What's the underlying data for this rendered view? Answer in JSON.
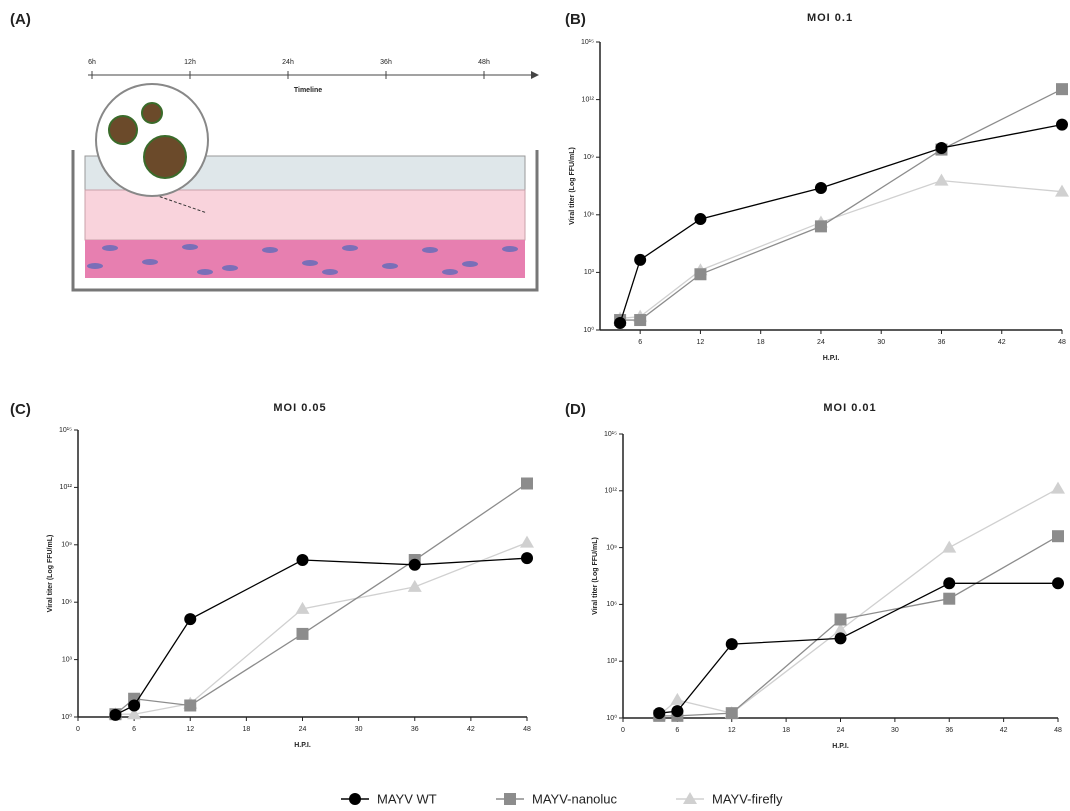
{
  "diagram": {
    "label": "(A)",
    "timeline_labels": [
      "6h",
      "12h",
      "24h",
      "36h",
      "48h"
    ],
    "timeline_title": "Timeline"
  },
  "chart_data": [
    {
      "type": "line",
      "panel": "(B)",
      "title": "MOI 0.1",
      "x_label": "H.P.I.",
      "y_label": "Viral titer (Log FFU/mL)",
      "log_y": true,
      "x": [
        4,
        6,
        12,
        24,
        36,
        48
      ],
      "xlim": [
        2,
        48
      ],
      "xticks": [
        6,
        12,
        18,
        24,
        30,
        36,
        42,
        48
      ],
      "ylim": [
        1,
        1000000000000000.0
      ],
      "yticks": [
        {
          "value": 1,
          "label": "10⁰"
        },
        {
          "value": 1000.0,
          "label": "10³"
        },
        {
          "value": 1000000.0,
          "label": "10⁶"
        },
        {
          "value": 1000000000.0,
          "label": "10⁹"
        },
        {
          "value": 1000000000000.0,
          "label": "10¹²"
        },
        {
          "value": 1000000000000000.0,
          "label": "10¹⁵"
        }
      ],
      "series": [
        {
          "name": "MAYV WT",
          "color": "#000000",
          "marker": "circle",
          "values": [
            2.3,
            4500,
            600000,
            25000000,
            3000000000,
            50000000000
          ]
        },
        {
          "name": "MAYV-nanoluc",
          "color": "#8c8c8c",
          "marker": "square",
          "values": [
            3.3,
            3.3,
            800,
            250000,
            2500000000,
            3500000000000
          ]
        },
        {
          "name": "MAYV-firefly",
          "color": "#d0d0d0",
          "marker": "triangle",
          "values": [
            4,
            5,
            1300,
            400000,
            60000000,
            16000000
          ]
        }
      ]
    },
    {
      "type": "line",
      "panel": "(C)",
      "title": "MOI 0.05",
      "x_label": "H.P.I.",
      "y_label": "Viral titer (Log FFU/mL)",
      "log_y": true,
      "x": [
        4,
        6,
        12,
        24,
        36,
        48
      ],
      "xlim": [
        0,
        48
      ],
      "xticks": [
        0,
        6,
        12,
        18,
        24,
        30,
        36,
        42,
        48
      ],
      "ylim": [
        1,
        1000000000000000.0
      ],
      "yticks": [
        {
          "value": 1,
          "label": "10⁰"
        },
        {
          "value": 1000.0,
          "label": "10³"
        },
        {
          "value": 1000000.0,
          "label": "10⁶"
        },
        {
          "value": 1000000000.0,
          "label": "10⁹"
        },
        {
          "value": 1000000000000.0,
          "label": "10¹²"
        },
        {
          "value": 1000000000000000.0,
          "label": "10¹⁵"
        }
      ],
      "series": [
        {
          "name": "MAYV WT",
          "color": "#000000",
          "marker": "circle",
          "values": [
            1.3,
            4,
            130000,
            160000000,
            90000000,
            200000000
          ]
        },
        {
          "name": "MAYV-nanoluc",
          "color": "#8c8c8c",
          "marker": "square",
          "values": [
            1.4,
            9,
            4,
            22000,
            160000000,
            1600000000000
          ]
        },
        {
          "name": "MAYV-firefly",
          "color": "#d0d0d0",
          "marker": "triangle",
          "values": [
            1.4,
            1.4,
            5,
            450000,
            6300000,
            1300000000
          ]
        }
      ]
    },
    {
      "type": "line",
      "panel": "(D)",
      "title": "MOI 0.01",
      "x_label": "H.P.I.",
      "y_label": "Viral titer (Log FFU/mL)",
      "log_y": true,
      "x": [
        4,
        6,
        12,
        24,
        36,
        48
      ],
      "xlim": [
        0,
        48
      ],
      "xticks": [
        0,
        6,
        12,
        18,
        24,
        30,
        36,
        42,
        48
      ],
      "ylim": [
        1,
        1000000000000000.0
      ],
      "yticks": [
        {
          "value": 1,
          "label": "10⁰"
        },
        {
          "value": 1000.0,
          "label": "10³"
        },
        {
          "value": 1000000.0,
          "label": "10⁶"
        },
        {
          "value": 1000000000.0,
          "label": "10⁹"
        },
        {
          "value": 1000000000000.0,
          "label": "10¹²"
        },
        {
          "value": 1000000000000000.0,
          "label": "10¹⁵"
        }
      ],
      "series": [
        {
          "name": "MAYV WT",
          "color": "#000000",
          "marker": "circle",
          "values": [
            1.8,
            2.3,
            8000,
            16000,
            13000000,
            13000000
          ]
        },
        {
          "name": "MAYV-nanoluc",
          "color": "#8c8c8c",
          "marker": "square",
          "values": [
            1.3,
            1.3,
            1.8,
            160000,
            2000000,
            4000000000
          ]
        },
        {
          "name": "MAYV-firefly",
          "color": "#d0d0d0",
          "marker": "triangle",
          "values": [
            1.4,
            9,
            1.8,
            45000,
            1000000000,
            1300000000000
          ]
        }
      ]
    }
  ]
}
